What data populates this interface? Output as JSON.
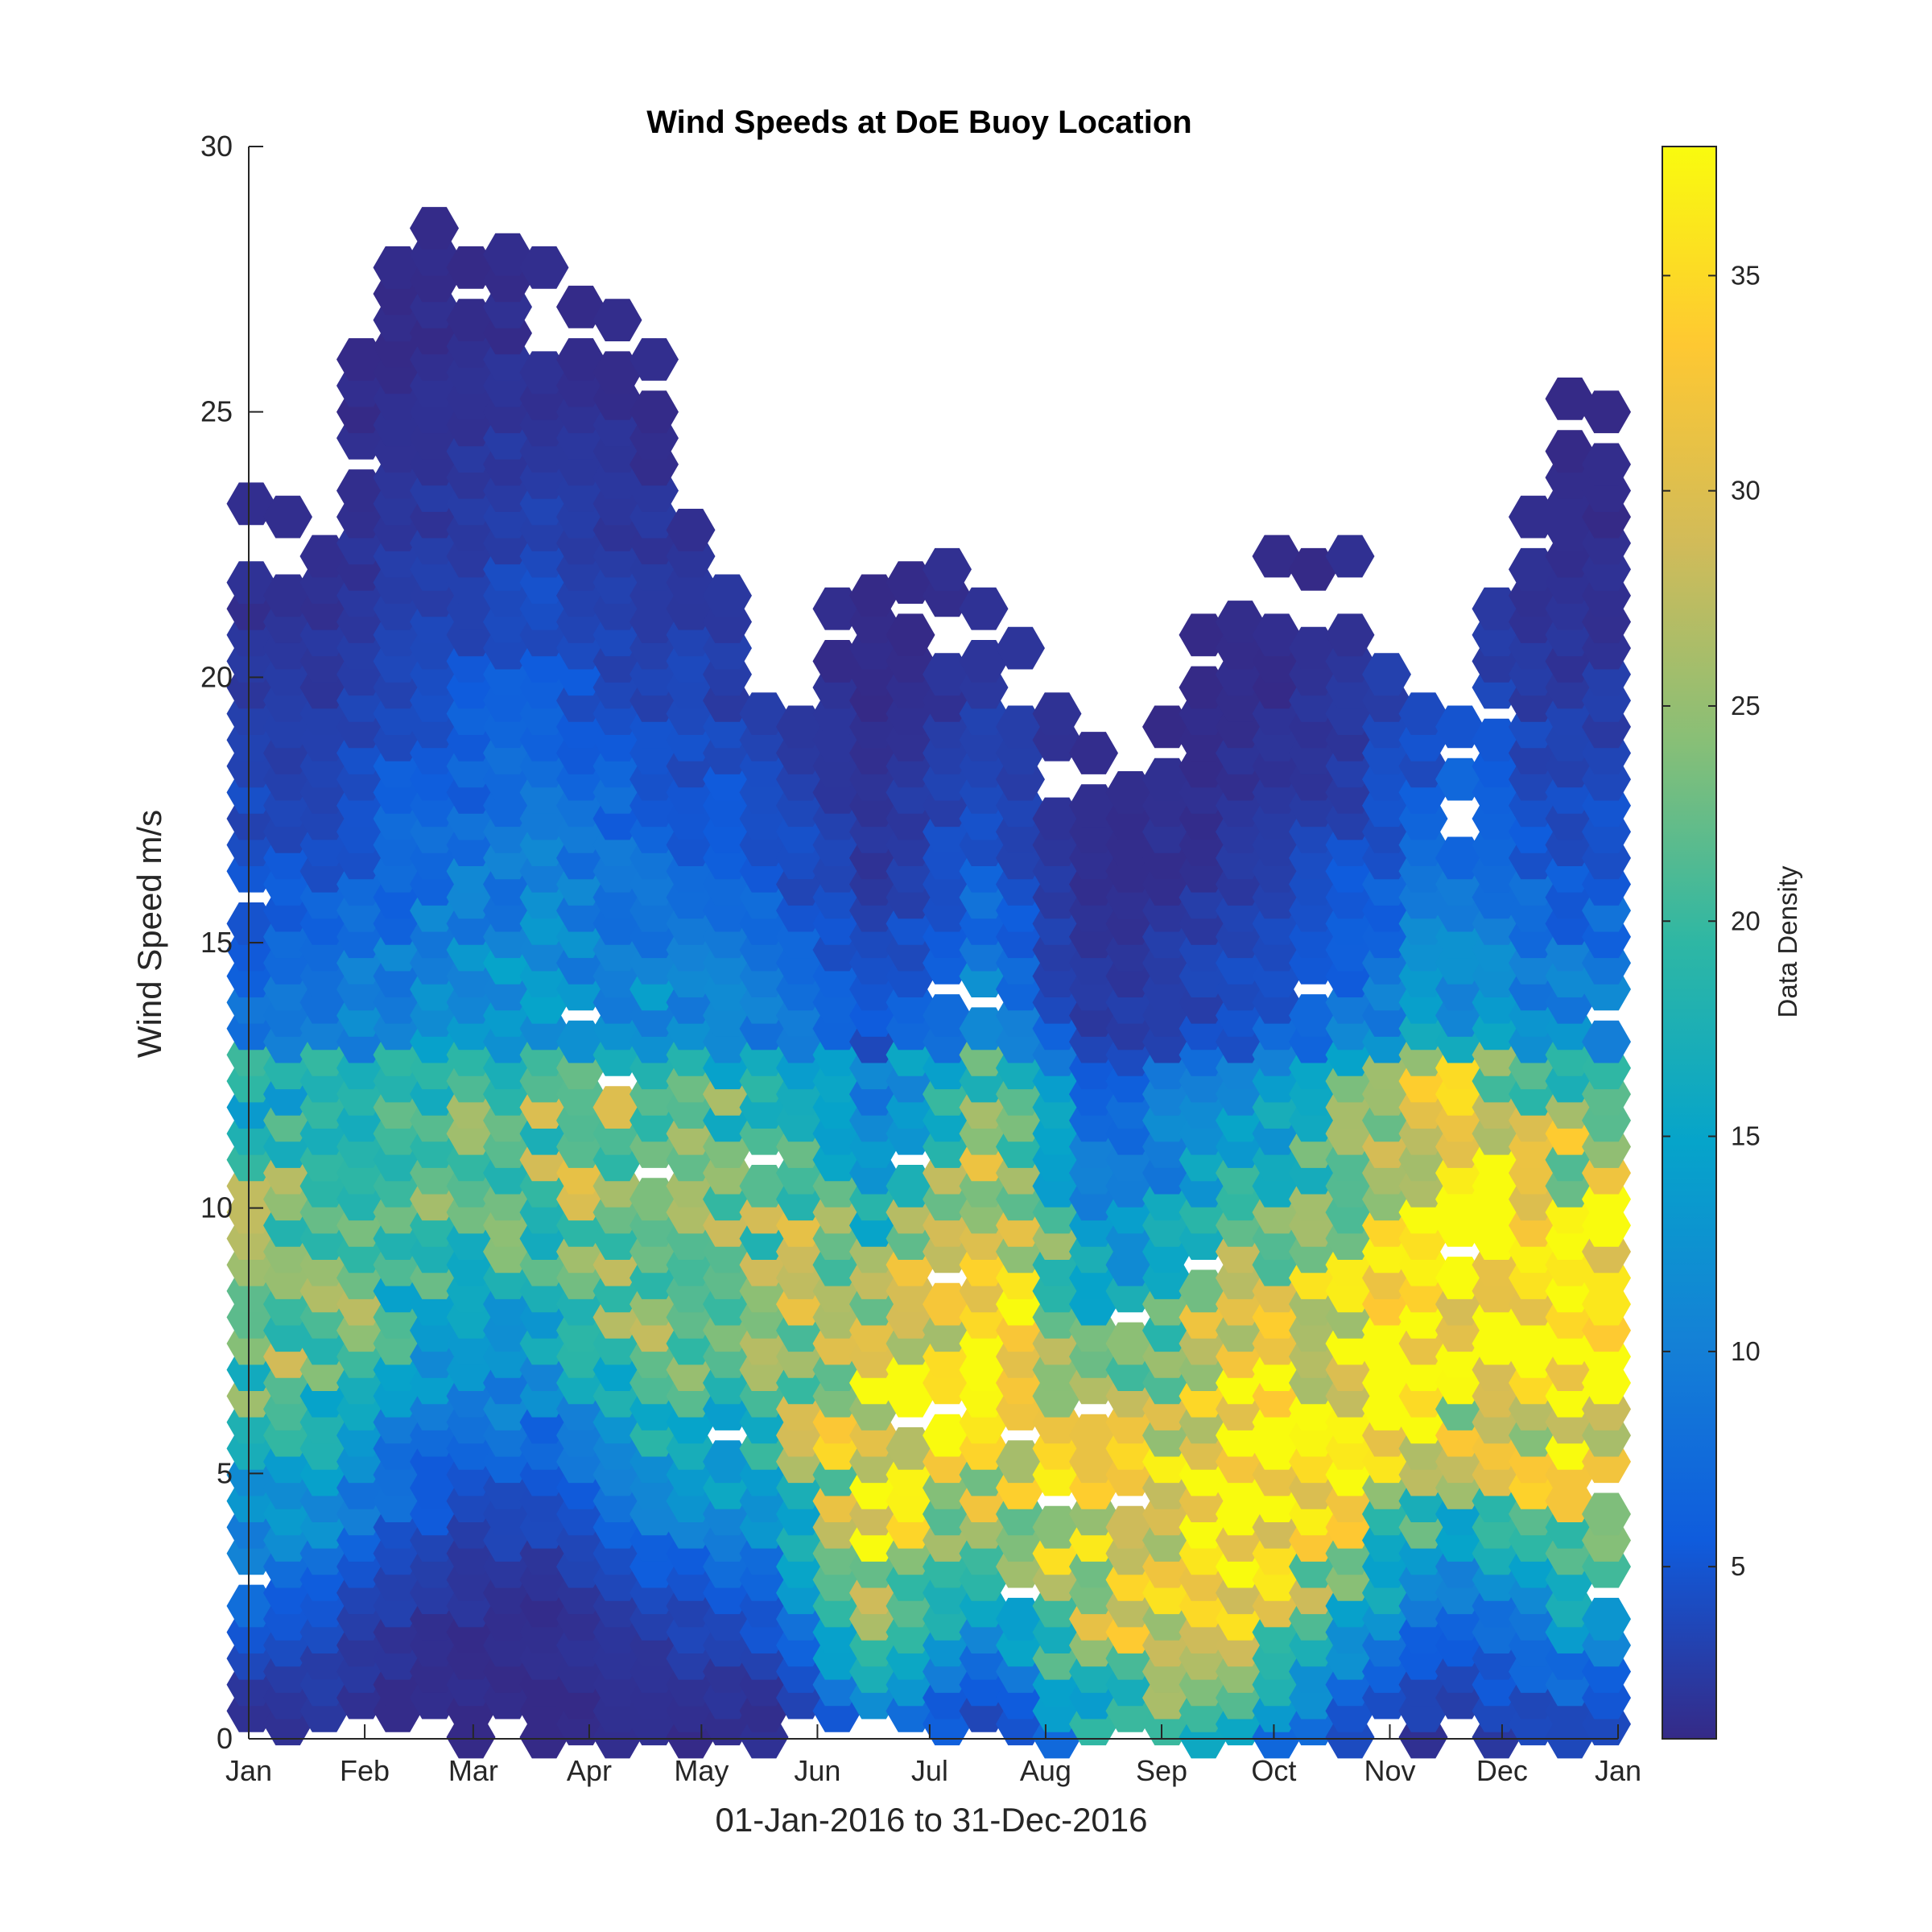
{
  "chart_data": {
    "type": "heatmap",
    "subtype": "hexbin",
    "title": "Wind Speeds at DoE Buoy Location",
    "xlabel": "01-Jan-2016 to 31-Dec-2016",
    "ylabel": "Wind Speed m/s",
    "xlim": [
      "2016-01-01",
      "2017-01-01"
    ],
    "ylim": [
      0,
      30
    ],
    "x_ticks": [
      {
        "label": "Jan",
        "date": "2016-01-01"
      },
      {
        "label": "Feb",
        "date": "2016-02-01"
      },
      {
        "label": "Mar",
        "date": "2016-03-01"
      },
      {
        "label": "Apr",
        "date": "2016-04-01"
      },
      {
        "label": "May",
        "date": "2016-05-01"
      },
      {
        "label": "Jun",
        "date": "2016-06-01"
      },
      {
        "label": "Jul",
        "date": "2016-07-01"
      },
      {
        "label": "Aug",
        "date": "2016-08-01"
      },
      {
        "label": "Sep",
        "date": "2016-09-01"
      },
      {
        "label": "Oct",
        "date": "2016-10-01"
      },
      {
        "label": "Nov",
        "date": "2016-11-01"
      },
      {
        "label": "Dec",
        "date": "2016-12-01"
      },
      {
        "label": "Jan",
        "date": "2017-01-01"
      }
    ],
    "y_ticks": [
      0,
      5,
      10,
      15,
      20,
      25,
      30
    ],
    "grid": false,
    "colorbar": {
      "label": "Data Density",
      "colormap": "parula",
      "range": [
        1,
        38
      ],
      "ticks": [
        5,
        10,
        15,
        20,
        25,
        30,
        35
      ],
      "colors": [
        "#352a87",
        "#0f5cdd",
        "#1481d6",
        "#06a4ca",
        "#2eb7a4",
        "#87bf77",
        "#d1bb59",
        "#fec832",
        "#f9fb0e"
      ]
    },
    "monthly_profiles": [
      {
        "month": "Jan",
        "wind_max": 22.5,
        "peak_speed": 8.5,
        "peak_density": 24
      },
      {
        "month": "Feb",
        "wind_max": 28.5,
        "peak_speed": 11,
        "peak_density": 22
      },
      {
        "month": "Mar",
        "wind_max": 27,
        "peak_speed": 12,
        "peak_density": 23
      },
      {
        "month": "Apr",
        "wind_max": 26,
        "peak_speed": 10,
        "peak_density": 27
      },
      {
        "month": "May",
        "wind_max": 19.5,
        "peak_speed": 9,
        "peak_density": 24
      },
      {
        "month": "Jun",
        "wind_max": 22,
        "peak_speed": 5,
        "peak_density": 33
      },
      {
        "month": "Jul",
        "wind_max": 20.5,
        "peak_speed": 8,
        "peak_density": 38
      },
      {
        "month": "Aug",
        "wind_max": 17.5,
        "peak_speed": 3.5,
        "peak_density": 28
      },
      {
        "month": "Sep",
        "wind_max": 20.5,
        "peak_speed": 4.5,
        "peak_density": 38
      },
      {
        "month": "Oct",
        "wind_max": 22,
        "peak_speed": 6.5,
        "peak_density": 36
      },
      {
        "month": "Nov",
        "wind_max": 17,
        "peak_speed": 9,
        "peak_density": 38
      },
      {
        "month": "Dec",
        "wind_max": 24.5,
        "peak_speed": 7.5,
        "peak_density": 38
      }
    ]
  }
}
